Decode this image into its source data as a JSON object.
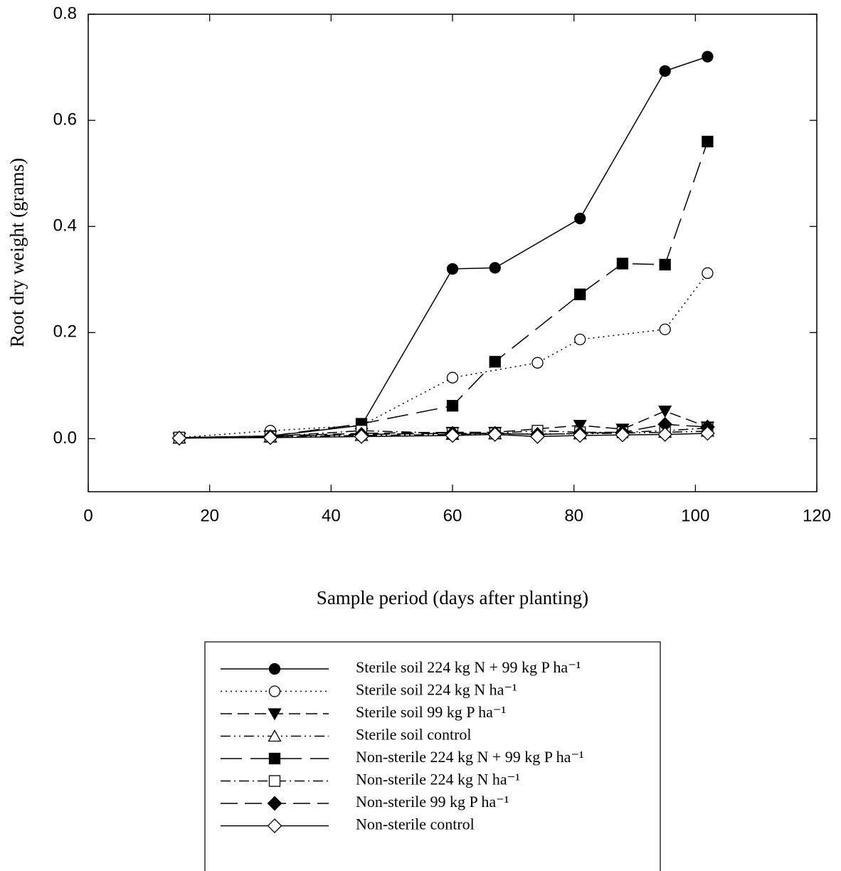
{
  "chart_data": {
    "type": "line",
    "xlabel": "Sample period (days after planting)",
    "ylabel": "Root dry weight (grams)",
    "xlim": [
      0,
      120
    ],
    "xticks": [
      0,
      20,
      40,
      60,
      80,
      100,
      120
    ],
    "ylim": [
      -0.1,
      0.8
    ],
    "yticks": [
      {
        "value": 0,
        "label": "0.0"
      },
      0.2,
      0.4,
      0.6,
      0.8
    ],
    "color": "#000000",
    "series": [
      {
        "name": "Sterile soil 224 kg N + 99 kg P ha⁻¹",
        "marker": "circle",
        "filled": true,
        "dash": "none",
        "x": [
          15,
          30,
          45,
          60,
          67,
          81,
          95,
          102
        ],
        "values": [
          0.002,
          0.005,
          0.025,
          0.32,
          0.322,
          0.415,
          0.693,
          0.72
        ]
      },
      {
        "name": "Sterile soil 224 kg N ha⁻¹",
        "marker": "circle",
        "filled": false,
        "dash": "2 5",
        "x": [
          15,
          30,
          45,
          60,
          74,
          81,
          95,
          102
        ],
        "values": [
          0.002,
          0.015,
          0.025,
          0.115,
          0.143,
          0.187,
          0.206,
          0.312
        ]
      },
      {
        "name": "Sterile soil 99 kg P ha⁻¹",
        "marker": "triangle-down",
        "filled": true,
        "dash": "16 8",
        "x": [
          15,
          30,
          45,
          60,
          67,
          81,
          88,
          95,
          102
        ],
        "values": [
          0.001,
          0.005,
          0.01,
          0.012,
          0.012,
          0.025,
          0.018,
          0.052,
          0.022
        ]
      },
      {
        "name": "Sterile soil control",
        "marker": "triangle-up",
        "filled": false,
        "dash": "14 5 2 5 2 5",
        "x": [
          15,
          30,
          45,
          60,
          67,
          81,
          95,
          102
        ],
        "values": [
          0.001,
          0.003,
          0.006,
          0.008,
          0.009,
          0.009,
          0.012,
          0.014
        ]
      },
      {
        "name": "Non-sterile 224 kg N + 99 kg P ha⁻¹",
        "marker": "square",
        "filled": true,
        "dash": "30 12",
        "x": [
          15,
          30,
          45,
          60,
          67,
          81,
          88,
          95,
          102
        ],
        "values": [
          0.002,
          0.005,
          0.028,
          0.062,
          0.145,
          0.272,
          0.33,
          0.328,
          0.56
        ]
      },
      {
        "name": "Non-sterile 224 kg N ha⁻¹",
        "marker": "square",
        "filled": false,
        "dash": "14 5 2 5",
        "x": [
          15,
          30,
          45,
          60,
          67,
          74,
          81,
          88,
          95,
          102
        ],
        "values": [
          0.002,
          0.004,
          0.015,
          0.01,
          0.01,
          0.015,
          0.012,
          0.012,
          0.015,
          0.02
        ]
      },
      {
        "name": "Non-sterile 99 kg P ha⁻¹",
        "marker": "diamond",
        "filled": true,
        "dash": "24 10",
        "x": [
          15,
          30,
          45,
          60,
          67,
          74,
          81,
          88,
          95,
          102
        ],
        "values": [
          0.001,
          0.004,
          0.008,
          0.01,
          0.01,
          0.008,
          0.01,
          0.012,
          0.027,
          0.022
        ]
      },
      {
        "name": "Non-sterile control",
        "marker": "diamond",
        "filled": false,
        "dash": "none",
        "x": [
          15,
          30,
          45,
          60,
          67,
          74,
          81,
          88,
          95,
          102
        ],
        "values": [
          0.001,
          0.002,
          0.004,
          0.006,
          0.008,
          0.004,
          0.006,
          0.007,
          0.008,
          0.01
        ]
      }
    ]
  }
}
